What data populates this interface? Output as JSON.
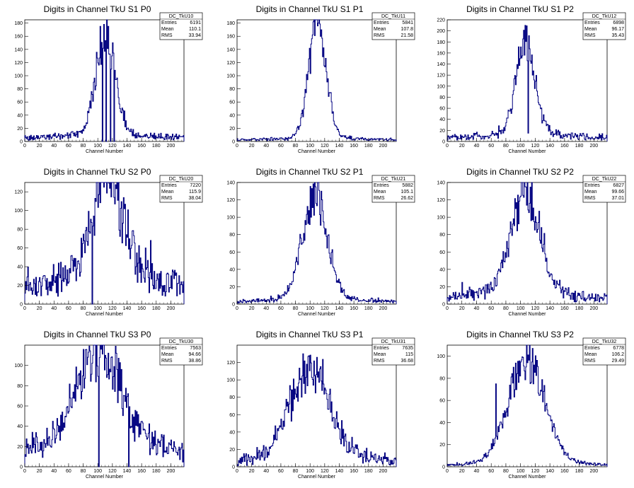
{
  "colors": {
    "histogram": "#000080",
    "axis": "#000000",
    "background": "#ffffff"
  },
  "chart_data": [
    {
      "type": "bar",
      "title": "Digits in Channel TkU S1 P0",
      "xlabel": "Channel Number",
      "xlim": [
        0,
        218
      ],
      "ylim": [
        0,
        185
      ],
      "xticks": [
        "0",
        "20",
        "40",
        "60",
        "80",
        "100",
        "120",
        "140",
        "160",
        "180",
        "200"
      ],
      "yticks": [
        "0",
        "20",
        "40",
        "60",
        "80",
        "100",
        "120",
        "140",
        "160",
        "180"
      ],
      "stats": {
        "name": "DC_TkU10",
        "rows": [
          [
            "Entries",
            "6191"
          ],
          [
            "Mean",
            "110.1"
          ],
          [
            "RMS",
            "33.94"
          ]
        ]
      },
      "shape": {
        "center": 110,
        "sigma": 13,
        "peak": 155,
        "base": 7,
        "tailScale": 0.45
      },
      "spikes": [
        [
          103,
          175
        ],
        [
          106,
          0
        ],
        [
          108,
          178
        ],
        [
          111,
          0
        ],
        [
          114,
          175
        ],
        [
          117,
          0
        ],
        [
          120,
          150
        ],
        [
          122,
          0
        ]
      ]
    },
    {
      "type": "bar",
      "title": "Digits in Channel TkU S1 P1",
      "xlabel": "Channel Number",
      "xlim": [
        0,
        218
      ],
      "ylim": [
        0,
        185
      ],
      "xticks": [
        "0",
        "20",
        "40",
        "60",
        "80",
        "100",
        "120",
        "140",
        "160",
        "180",
        "200"
      ],
      "yticks": [
        "0",
        "20",
        "40",
        "60",
        "80",
        "100",
        "120",
        "140",
        "160",
        "180"
      ],
      "stats": {
        "name": "DC_TkU11",
        "rows": [
          [
            "Entries",
            "5841"
          ],
          [
            "Mean",
            "107.8"
          ],
          [
            "RMS",
            "21.58"
          ]
        ]
      },
      "shape": {
        "center": 110,
        "sigma": 12,
        "peak": 170,
        "base": 3,
        "tailScale": 0.3
      },
      "spikes": [
        [
          111,
          180
        ]
      ]
    },
    {
      "type": "bar",
      "title": "Digits in Channel TkU S1 P2",
      "xlabel": "Channel Number",
      "xlim": [
        0,
        218
      ],
      "ylim": [
        0,
        220
      ],
      "xticks": [
        "0",
        "20",
        "40",
        "60",
        "80",
        "100",
        "120",
        "140",
        "160",
        "180",
        "200"
      ],
      "yticks": [
        "0",
        "20",
        "40",
        "60",
        "80",
        "100",
        "120",
        "140",
        "160",
        "180",
        "200",
        "220"
      ],
      "stats": {
        "name": "DC_TkU12",
        "rows": [
          [
            "Entries",
            "6898"
          ],
          [
            "Mean",
            "96.17"
          ],
          [
            "RMS",
            "35.43"
          ]
        ]
      },
      "shape": {
        "center": 106,
        "sigma": 12,
        "peak": 170,
        "base": 8,
        "tailScale": 0.9
      },
      "spikes": [
        [
          106,
          210
        ],
        [
          110,
          15
        ]
      ]
    },
    {
      "type": "bar",
      "title": "Digits in Channel TkU S2 P0",
      "xlabel": "Channel Number",
      "xlim": [
        0,
        218
      ],
      "ylim": [
        0,
        130
      ],
      "xticks": [
        "0",
        "20",
        "40",
        "60",
        "80",
        "100",
        "120",
        "140",
        "160",
        "180",
        "200"
      ],
      "yticks": [
        "0",
        "20",
        "40",
        "60",
        "80",
        "100",
        "120"
      ],
      "stats": {
        "name": "DC_TkU20",
        "rows": [
          [
            "Entries",
            "7220"
          ],
          [
            "Mean",
            "115.9"
          ],
          [
            "RMS",
            "38.04"
          ]
        ]
      },
      "shape": {
        "center": 112,
        "sigma": 20,
        "peak": 110,
        "base": 20,
        "tailScale": 1.2
      },
      "spikes": [
        [
          92,
          0
        ],
        [
          108,
          125
        ],
        [
          165,
          60
        ],
        [
          172,
          68
        ]
      ]
    },
    {
      "type": "bar",
      "title": "Digits in Channel TkU S2 P1",
      "xlabel": "Channel Number",
      "xlim": [
        0,
        218
      ],
      "ylim": [
        0,
        140
      ],
      "xticks": [
        "0",
        "20",
        "40",
        "60",
        "80",
        "100",
        "120",
        "140",
        "160",
        "180",
        "200"
      ],
      "yticks": [
        "0",
        "20",
        "40",
        "60",
        "80",
        "100",
        "120",
        "140"
      ],
      "stats": {
        "name": "DC_TkU21",
        "rows": [
          [
            "Entries",
            "5882"
          ],
          [
            "Mean",
            "105.1"
          ],
          [
            "RMS",
            "26.62"
          ]
        ]
      },
      "shape": {
        "center": 106,
        "sigma": 17,
        "peak": 118,
        "base": 3,
        "tailScale": 0.3
      },
      "spikes": [
        [
          107,
          135
        ]
      ]
    },
    {
      "type": "bar",
      "title": "Digits in Channel TkU S2 P2",
      "xlabel": "Channel Number",
      "xlim": [
        0,
        218
      ],
      "ylim": [
        0,
        140
      ],
      "xticks": [
        "0",
        "20",
        "40",
        "60",
        "80",
        "100",
        "120",
        "140",
        "160",
        "180",
        "200"
      ],
      "yticks": [
        "0",
        "20",
        "40",
        "60",
        "80",
        "100",
        "120",
        "140"
      ],
      "stats": {
        "name": "DC_TkU22",
        "rows": [
          [
            "Entries",
            "6827"
          ],
          [
            "Mean",
            "99.66"
          ],
          [
            "RMS",
            "37.01"
          ]
        ]
      },
      "shape": {
        "center": 106,
        "sigma": 20,
        "peak": 112,
        "base": 6,
        "tailScale": 0.8
      },
      "spikes": [
        [
          106,
          135
        ],
        [
          20,
          25
        ]
      ]
    },
    {
      "type": "bar",
      "title": "Digits in Channel TkU S3 P0",
      "xlabel": "Channel Number",
      "xlim": [
        0,
        218
      ],
      "ylim": [
        0,
        120
      ],
      "xticks": [
        "0",
        "20",
        "40",
        "60",
        "80",
        "100",
        "120",
        "140",
        "160",
        "180",
        "200"
      ],
      "yticks": [
        "0",
        "20",
        "40",
        "60",
        "80",
        "100"
      ],
      "stats": {
        "name": "DC_TkU30",
        "rows": [
          [
            "Entries",
            "7563"
          ],
          [
            "Mean",
            "94.66"
          ],
          [
            "RMS",
            "38.86"
          ]
        ]
      },
      "shape": {
        "center": 100,
        "sigma": 30,
        "peak": 90,
        "base": 12,
        "tailScale": 1.0
      },
      "spikes": [
        [
          101,
          0
        ],
        [
          110,
          110
        ],
        [
          118,
          108
        ],
        [
          142,
          0
        ]
      ]
    },
    {
      "type": "bar",
      "title": "Digits in Channel TkU S3 P1",
      "xlabel": "Channel Number",
      "xlim": [
        0,
        218
      ],
      "ylim": [
        0,
        140
      ],
      "xticks": [
        "0",
        "20",
        "40",
        "60",
        "80",
        "100",
        "120",
        "140",
        "160",
        "180",
        "200"
      ],
      "yticks": [
        "0",
        "20",
        "40",
        "60",
        "80",
        "100",
        "120"
      ],
      "stats": {
        "name": "DC_TkU31",
        "rows": [
          [
            "Entries",
            "7635"
          ],
          [
            "Mean",
            "115"
          ],
          [
            "RMS",
            "36.68"
          ]
        ]
      },
      "shape": {
        "center": 100,
        "sigma": 27,
        "peak": 100,
        "base": 2,
        "tailScale": 1.0
      },
      "spikes": [
        [
          90,
          130
        ],
        [
          97,
          127
        ]
      ]
    },
    {
      "type": "bar",
      "title": "Digits in Channel TkU S3 P2",
      "xlabel": "Channel Number",
      "xlim": [
        0,
        218
      ],
      "ylim": [
        0,
        110
      ],
      "xticks": [
        "0",
        "20",
        "40",
        "60",
        "80",
        "100",
        "120",
        "140",
        "160",
        "180",
        "200"
      ],
      "yticks": [
        "0",
        "20",
        "40",
        "60",
        "80",
        "100"
      ],
      "stats": {
        "name": "DC_TkU32",
        "rows": [
          [
            "Entries",
            "6778"
          ],
          [
            "Mean",
            "106.2"
          ],
          [
            "RMS",
            "29.49"
          ]
        ]
      },
      "shape": {
        "center": 108,
        "sigma": 25,
        "peak": 92,
        "base": 1,
        "tailScale": 0.2
      },
      "spikes": [
        [
          108,
          110
        ],
        [
          112,
          110
        ],
        [
          66,
          75
        ]
      ]
    }
  ]
}
